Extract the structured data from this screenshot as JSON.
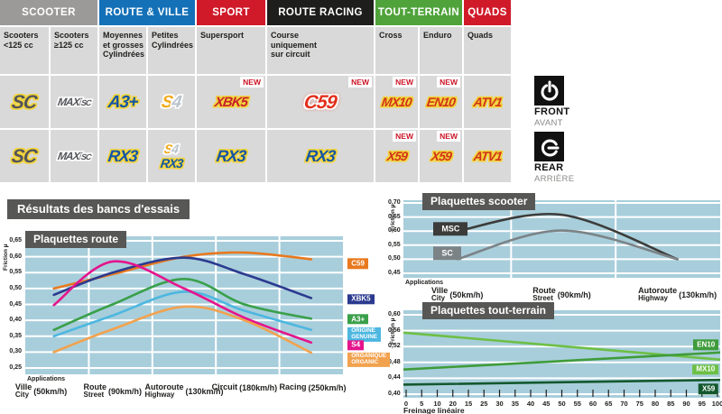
{
  "table": {
    "groups": [
      {
        "label": "SCOOTER",
        "color": "#9b9a99"
      },
      {
        "label": "ROUTE & VILLE",
        "color": "#1471b8"
      },
      {
        "label": "SPORT",
        "color": "#d01a2a"
      },
      {
        "label": "ROUTE RACING",
        "color": "#1e1e1c"
      },
      {
        "label": "TOUT-TERRAIN",
        "color": "#4fa33a"
      },
      {
        "label": "QUADS",
        "color": "#d01a2a"
      }
    ],
    "columns": [
      {
        "sub": "Scooters\n<125 cc"
      },
      {
        "sub": "Scooters\n≥125 cc"
      },
      {
        "sub": "Moyennes\net grosses\nCylindrées"
      },
      {
        "sub": "Petites\nCylindrées"
      },
      {
        "sub": "Supersport"
      },
      {
        "sub": "Course\nuniquement\nsur circuit"
      },
      {
        "sub": "Cross"
      },
      {
        "sub": "Enduro"
      },
      {
        "sub": "Quads"
      }
    ],
    "front": [
      {
        "logo": "SC"
      },
      {
        "logo": [
          "MAXI",
          "SC"
        ]
      },
      {
        "logo": "A3+"
      },
      {
        "logo": [
          "S",
          "4"
        ]
      },
      {
        "logo": "XBK5",
        "new": "NEW"
      },
      {
        "logo": "C59",
        "new": "NEW"
      },
      {
        "logo": "MX10",
        "new": "NEW"
      },
      {
        "logo": "EN10",
        "new": "NEW"
      },
      {
        "logo": "ATV1"
      }
    ],
    "rear": [
      {
        "logo": "SC"
      },
      {
        "logo": [
          "MAXI",
          "SC"
        ]
      },
      {
        "logo": "RX3"
      },
      {
        "stack": [
          {
            "logo": [
              "S",
              "4"
            ]
          },
          {
            "logo": "RX3"
          }
        ]
      },
      {
        "logo": "RX3"
      },
      {
        "logo": "RX3"
      },
      {
        "logo": "X59",
        "new": "NEW"
      },
      {
        "logo": "X59",
        "new": "NEW"
      },
      {
        "logo": "ATV1"
      }
    ]
  },
  "side_legend": {
    "front_label": "FRONT",
    "front_sub": "AVANT",
    "rear_label": "REAR",
    "rear_sub": "ARRIÈRE"
  },
  "results_title": "Résultats des bancs d'essais",
  "chart_data": [
    {
      "id": "route",
      "type": "line",
      "title": "Plaquettes route",
      "ylabel": "Friction µ",
      "ylim": [
        0.25,
        0.65
      ],
      "ytick_values": [
        0.65,
        0.6,
        0.55,
        0.5,
        0.45,
        0.4,
        0.35,
        0.3,
        0.25
      ],
      "ytick_labels": [
        "0,65",
        "0,60",
        "0,55",
        "0,50",
        "0,45",
        "0,40",
        "0,35",
        "0,30",
        "0,25"
      ],
      "applications_label": "Applications",
      "x_categories": [
        {
          "fr": "Ville",
          "en": "City",
          "speed": "(50km/h)",
          "xf": 0.05
        },
        {
          "fr": "Route",
          "en": "Street",
          "speed": "(90km/h)",
          "xf": 0.275
        },
        {
          "fr": "Autoroute",
          "en": "Highway",
          "speed": "(130km/h)",
          "xf": 0.5
        },
        {
          "fr": "Circuit",
          "en": "",
          "speed": "(180km/h)",
          "xf": 0.69
        },
        {
          "fr": "Racing",
          "en": "",
          "speed": "(250km/h)",
          "xf": 0.905
        }
      ],
      "vgrid": [
        0.2,
        0.4,
        0.6,
        0.8
      ],
      "series": [
        {
          "name": "C59",
          "color": "#e8791e",
          "xf": [
            0.09,
            0.275,
            0.5,
            0.69,
            0.9
          ],
          "values": [
            0.5,
            0.545,
            0.6,
            0.613,
            0.592
          ],
          "badge": {
            "lines": [
              "C59"
            ],
            "v": 0.578,
            "xf": 1.015,
            "align": "left"
          }
        },
        {
          "name": "XBK5",
          "color": "#2b3a8f",
          "xf": [
            0.09,
            0.275,
            0.5,
            0.69,
            0.9
          ],
          "values": [
            0.48,
            0.55,
            0.597,
            0.545,
            0.47
          ],
          "badge": {
            "lines": [
              "XBK5"
            ],
            "v": 0.467,
            "xf": 1.015,
            "align": "left"
          }
        },
        {
          "name": "A3+",
          "color": "#3aa04a",
          "xf": [
            0.09,
            0.275,
            0.5,
            0.69,
            0.9
          ],
          "values": [
            0.37,
            0.45,
            0.53,
            0.45,
            0.405
          ],
          "badge": {
            "lines": [
              "A3+"
            ],
            "v": 0.403,
            "xf": 1.015,
            "align": "left"
          }
        },
        {
          "name": "ORIGINE GENUINE",
          "color": "#4db7e0",
          "xf": [
            0.09,
            0.275,
            0.5,
            0.69,
            0.9
          ],
          "values": [
            0.35,
            0.415,
            0.49,
            0.43,
            0.37
          ],
          "badge": {
            "lines": [
              "ORIGINE",
              "GENUINE"
            ],
            "v": 0.356,
            "xf": 1.015,
            "align": "left"
          }
        },
        {
          "name": "S4",
          "color": "#e5148c",
          "xf": [
            0.09,
            0.275,
            0.5,
            0.69,
            0.9
          ],
          "values": [
            0.448,
            0.585,
            0.5,
            0.408,
            0.33
          ],
          "badge": {
            "lines": [
              "S4"
            ],
            "v": 0.322,
            "xf": 1.015,
            "align": "left"
          }
        },
        {
          "name": "ORGANIQUE ORGANIC",
          "color": "#f2a24e",
          "xf": [
            0.09,
            0.275,
            0.5,
            0.69,
            0.9
          ],
          "values": [
            0.3,
            0.372,
            0.443,
            0.4,
            0.298
          ],
          "badge": {
            "lines": [
              "ORGANIQUE",
              "ORGANIC"
            ],
            "v": 0.276,
            "xf": 1.015,
            "align": "left"
          }
        }
      ]
    },
    {
      "id": "scooter",
      "type": "line",
      "title": "Plaquettes scooter",
      "ylabel": "Friction µ",
      "ylim": [
        0.45,
        0.7
      ],
      "ytick_values": [
        0.7,
        0.65,
        0.6,
        0.55,
        0.5,
        0.45
      ],
      "ytick_labels": [
        "0,70",
        "0,65",
        "0,60",
        "0,55",
        "0,50",
        "0,45"
      ],
      "applications_label": "Applications",
      "x_categories": [
        {
          "fr": "Ville",
          "en": "City",
          "speed": "(50km/h)",
          "xf": 0.17
        },
        {
          "fr": "Route",
          "en": "Street",
          "speed": "(90km/h)",
          "xf": 0.5
        },
        {
          "fr": "Autoroute",
          "en": "Highway",
          "speed": "(130km/h)",
          "xf": 0.865
        }
      ],
      "vgrid": [
        0.34,
        0.67
      ],
      "series": [
        {
          "name": "MSC",
          "color": "#3c3c3b",
          "xf": [
            0.17,
            0.5,
            0.865
          ],
          "values": [
            0.6,
            0.658,
            0.5
          ],
          "badge": {
            "lines": [
              "MSC"
            ],
            "v": 0.607,
            "xf": 0.095,
            "align": "left",
            "big": true
          }
        },
        {
          "name": "SC",
          "color": "#7b8387",
          "xf": [
            0.17,
            0.5,
            0.865
          ],
          "values": [
            0.5,
            0.602,
            0.5
          ],
          "badge": {
            "lines": [
              "SC"
            ],
            "v": 0.522,
            "xf": 0.095,
            "align": "left",
            "big": true
          }
        }
      ]
    },
    {
      "id": "tt",
      "type": "line",
      "title": "Plaquettes tout-terrain",
      "ylabel": "Friction µ",
      "xlabel": "Freinage linéaire",
      "ylim": [
        0.4,
        0.6
      ],
      "ytick_values": [
        0.6,
        0.56,
        0.52,
        0.48,
        0.44,
        0.4
      ],
      "ytick_labels": [
        "0,60",
        "0,56",
        "0,52",
        "0,48",
        "0,44",
        "0,40"
      ],
      "xtick_labels": [
        "0",
        "5",
        "10",
        "20",
        "15",
        "25",
        "30",
        "35",
        "40",
        "45",
        "50",
        "55",
        "60",
        "65",
        "70",
        "75",
        "80",
        "85",
        "90",
        "95",
        "100"
      ],
      "series": [
        {
          "name": "MX10",
          "color": "#6dbf45",
          "xf": [
            0,
            1
          ],
          "values": [
            0.555,
            0.487
          ],
          "badge": {
            "lines": [
              "MX10"
            ],
            "v": 0.462,
            "xf": 0.995,
            "align": "right"
          }
        },
        {
          "name": "EN10",
          "color": "#3f9c3b",
          "xf": [
            0,
            1
          ],
          "values": [
            0.462,
            0.505
          ],
          "badge": {
            "lines": [
              "EN10"
            ],
            "v": 0.524,
            "xf": 0.995,
            "align": "right"
          }
        },
        {
          "name": "X59",
          "color": "#14582e",
          "xf": [
            0,
            1
          ],
          "values": [
            0.424,
            0.436
          ],
          "badge": {
            "lines": [
              "X59"
            ],
            "v": 0.413,
            "xf": 0.995,
            "align": "right"
          }
        }
      ]
    }
  ]
}
